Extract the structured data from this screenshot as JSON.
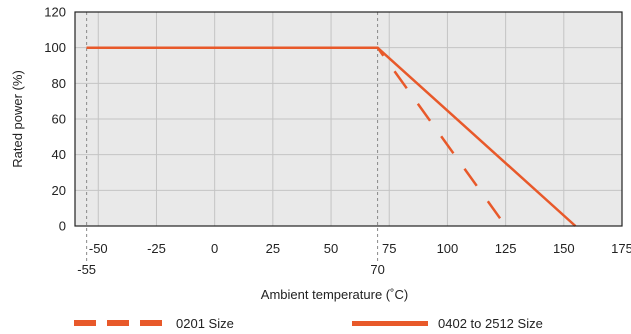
{
  "chart_data": {
    "type": "line",
    "xlabel": "Ambient temperature (˚C)",
    "ylabel": "Rated power (%)",
    "xlim": [
      -60,
      175
    ],
    "ylim": [
      0,
      120
    ],
    "x_ticks": [
      "-50",
      "-25",
      "0",
      "25",
      "50",
      "75",
      "100",
      "125",
      "150",
      "175"
    ],
    "x_extra_ticks": [
      "-55",
      "70"
    ],
    "y_ticks": [
      "0",
      "20",
      "40",
      "60",
      "80",
      "100",
      "120"
    ],
    "grid": true,
    "legend_position": "bottom",
    "series": [
      {
        "name": "0201 Size",
        "style": "dashed",
        "color": "#e8592a",
        "x": [
          -55,
          70,
          125
        ],
        "y": [
          100,
          100,
          0
        ]
      },
      {
        "name": "0402 to 2512 Size",
        "style": "solid",
        "color": "#e8592a",
        "x": [
          -55,
          70,
          155
        ],
        "y": [
          100,
          100,
          0
        ]
      }
    ]
  }
}
